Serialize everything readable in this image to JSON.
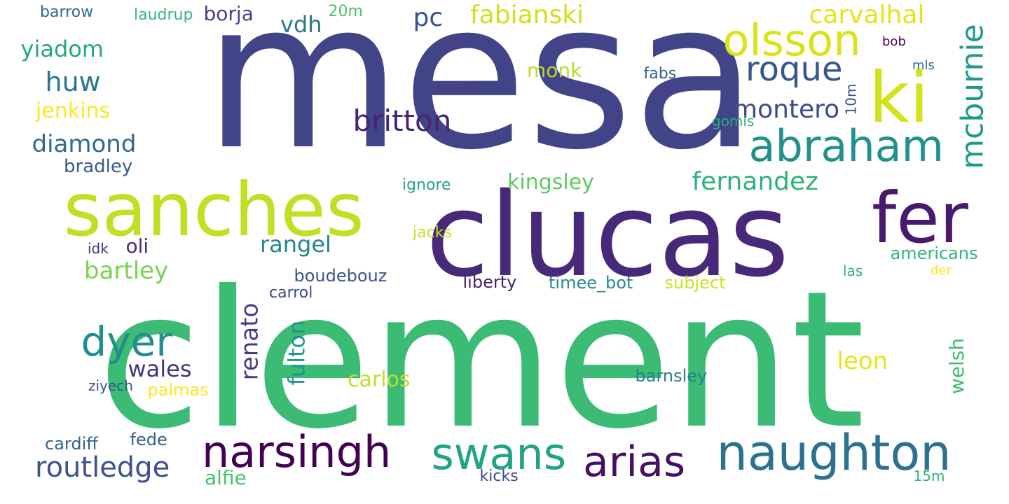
{
  "word_cloud": {
    "background_color": "#ffffff",
    "words": [
      {
        "text": "mesa",
        "color": "#414487",
        "vertical": false
      },
      {
        "text": "clement",
        "color": "#3cbb75",
        "vertical": false
      },
      {
        "text": "clucas",
        "color": "#482878",
        "vertical": false
      },
      {
        "text": "sanches",
        "color": "#c2df23",
        "vertical": false
      },
      {
        "text": "ki",
        "color": "#d2e21b",
        "vertical": false
      },
      {
        "text": "fer",
        "color": "#481a6c",
        "vertical": false
      },
      {
        "text": "naughton",
        "color": "#2c728e",
        "vertical": false
      },
      {
        "text": "abraham",
        "color": "#21918c",
        "vertical": false
      },
      {
        "text": "olsson",
        "color": "#dae319",
        "vertical": false
      },
      {
        "text": "narsingh",
        "color": "#440154",
        "vertical": false
      },
      {
        "text": "swans",
        "color": "#20a386",
        "vertical": false
      },
      {
        "text": "arias",
        "color": "#471063",
        "vertical": false
      },
      {
        "text": "roque",
        "color": "#39558c",
        "vertical": false
      },
      {
        "text": "mcburnie",
        "color": "#1f9a8a",
        "vertical": true
      },
      {
        "text": "britton",
        "color": "#482475",
        "vertical": false
      },
      {
        "text": "dyer",
        "color": "#21908d",
        "vertical": false
      },
      {
        "text": "routledge",
        "color": "#3b528b",
        "vertical": false
      },
      {
        "text": "fabianski",
        "color": "#d0e11c",
        "vertical": false
      },
      {
        "text": "carvalhal",
        "color": "#e5e419",
        "vertical": false
      },
      {
        "text": "montero",
        "color": "#3e4a89",
        "vertical": false
      },
      {
        "text": "fernandez",
        "color": "#2db27d",
        "vertical": false
      },
      {
        "text": "huw",
        "color": "#2a768e",
        "vertical": false
      },
      {
        "text": "yiadom",
        "color": "#22a884",
        "vertical": false
      },
      {
        "text": "diamond",
        "color": "#31688e",
        "vertical": false
      },
      {
        "text": "bartley",
        "color": "#7ad151",
        "vertical": false
      },
      {
        "text": "rangel",
        "color": "#25848e",
        "vertical": false
      },
      {
        "text": "renato",
        "color": "#433e85",
        "vertical": true
      },
      {
        "text": "wales",
        "color": "#46327e",
        "vertical": false
      },
      {
        "text": "vdh",
        "color": "#2a788e",
        "vertical": false
      },
      {
        "text": "pc",
        "color": "#3b518b",
        "vertical": false
      },
      {
        "text": "leon",
        "color": "#e7e419",
        "vertical": false
      },
      {
        "text": "kingsley",
        "color": "#5ec962",
        "vertical": false
      },
      {
        "text": "carlos",
        "color": "#bddf26",
        "vertical": false
      },
      {
        "text": "fulton",
        "color": "#1f968b",
        "vertical": true
      },
      {
        "text": "borja",
        "color": "#414487",
        "vertical": false
      },
      {
        "text": "bradley",
        "color": "#38598c",
        "vertical": false
      },
      {
        "text": "jenkins",
        "color": "#fde725",
        "vertical": false
      },
      {
        "text": "alfie",
        "color": "#4ac16d",
        "vertical": false
      },
      {
        "text": "monk",
        "color": "#b5de2b",
        "vertical": false
      },
      {
        "text": "boudebouz",
        "color": "#3b528b",
        "vertical": false
      },
      {
        "text": "oli",
        "color": "#472f7d",
        "vertical": false
      },
      {
        "text": "welsh",
        "color": "#3fbc73",
        "vertical": true
      },
      {
        "text": "barnsley",
        "color": "#277f8e",
        "vertical": false
      },
      {
        "text": "cardiff",
        "color": "#33638d",
        "vertical": false
      },
      {
        "text": "fede",
        "color": "#34618d",
        "vertical": false
      },
      {
        "text": "liberty",
        "color": "#481f70",
        "vertical": false
      },
      {
        "text": "timee_bot",
        "color": "#23898e",
        "vertical": false
      },
      {
        "text": "subject",
        "color": "#c8e020",
        "vertical": false
      },
      {
        "text": "americans",
        "color": "#32b67a",
        "vertical": false
      },
      {
        "text": "palmas",
        "color": "#fde725",
        "vertical": false
      },
      {
        "text": "ziyech",
        "color": "#3b528b",
        "vertical": false
      },
      {
        "text": "ignore",
        "color": "#20a486",
        "vertical": false
      },
      {
        "text": "jacks",
        "color": "#cae11f",
        "vertical": false
      },
      {
        "text": "laudrup",
        "color": "#35b779",
        "vertical": false
      },
      {
        "text": "barrow",
        "color": "#31688e",
        "vertical": false
      },
      {
        "text": "20m",
        "color": "#4ac16d",
        "vertical": false
      },
      {
        "text": "10m",
        "color": "#3e4c8a",
        "vertical": true
      },
      {
        "text": "gomis",
        "color": "#29af7f",
        "vertical": false
      },
      {
        "text": "fabs",
        "color": "#33638d",
        "vertical": false
      },
      {
        "text": "mls",
        "color": "#2f6c8e",
        "vertical": false
      },
      {
        "text": "bob",
        "color": "#450457",
        "vertical": false
      },
      {
        "text": "carrol",
        "color": "#3f4788",
        "vertical": false
      },
      {
        "text": "idk",
        "color": "#46337f",
        "vertical": false
      },
      {
        "text": "las",
        "color": "#2ab07f",
        "vertical": false
      },
      {
        "text": "der",
        "color": "#fde725",
        "vertical": false
      },
      {
        "text": "kicks",
        "color": "#3e4989",
        "vertical": false
      },
      {
        "text": "15m",
        "color": "#2db27d",
        "vertical": false
      }
    ]
  }
}
